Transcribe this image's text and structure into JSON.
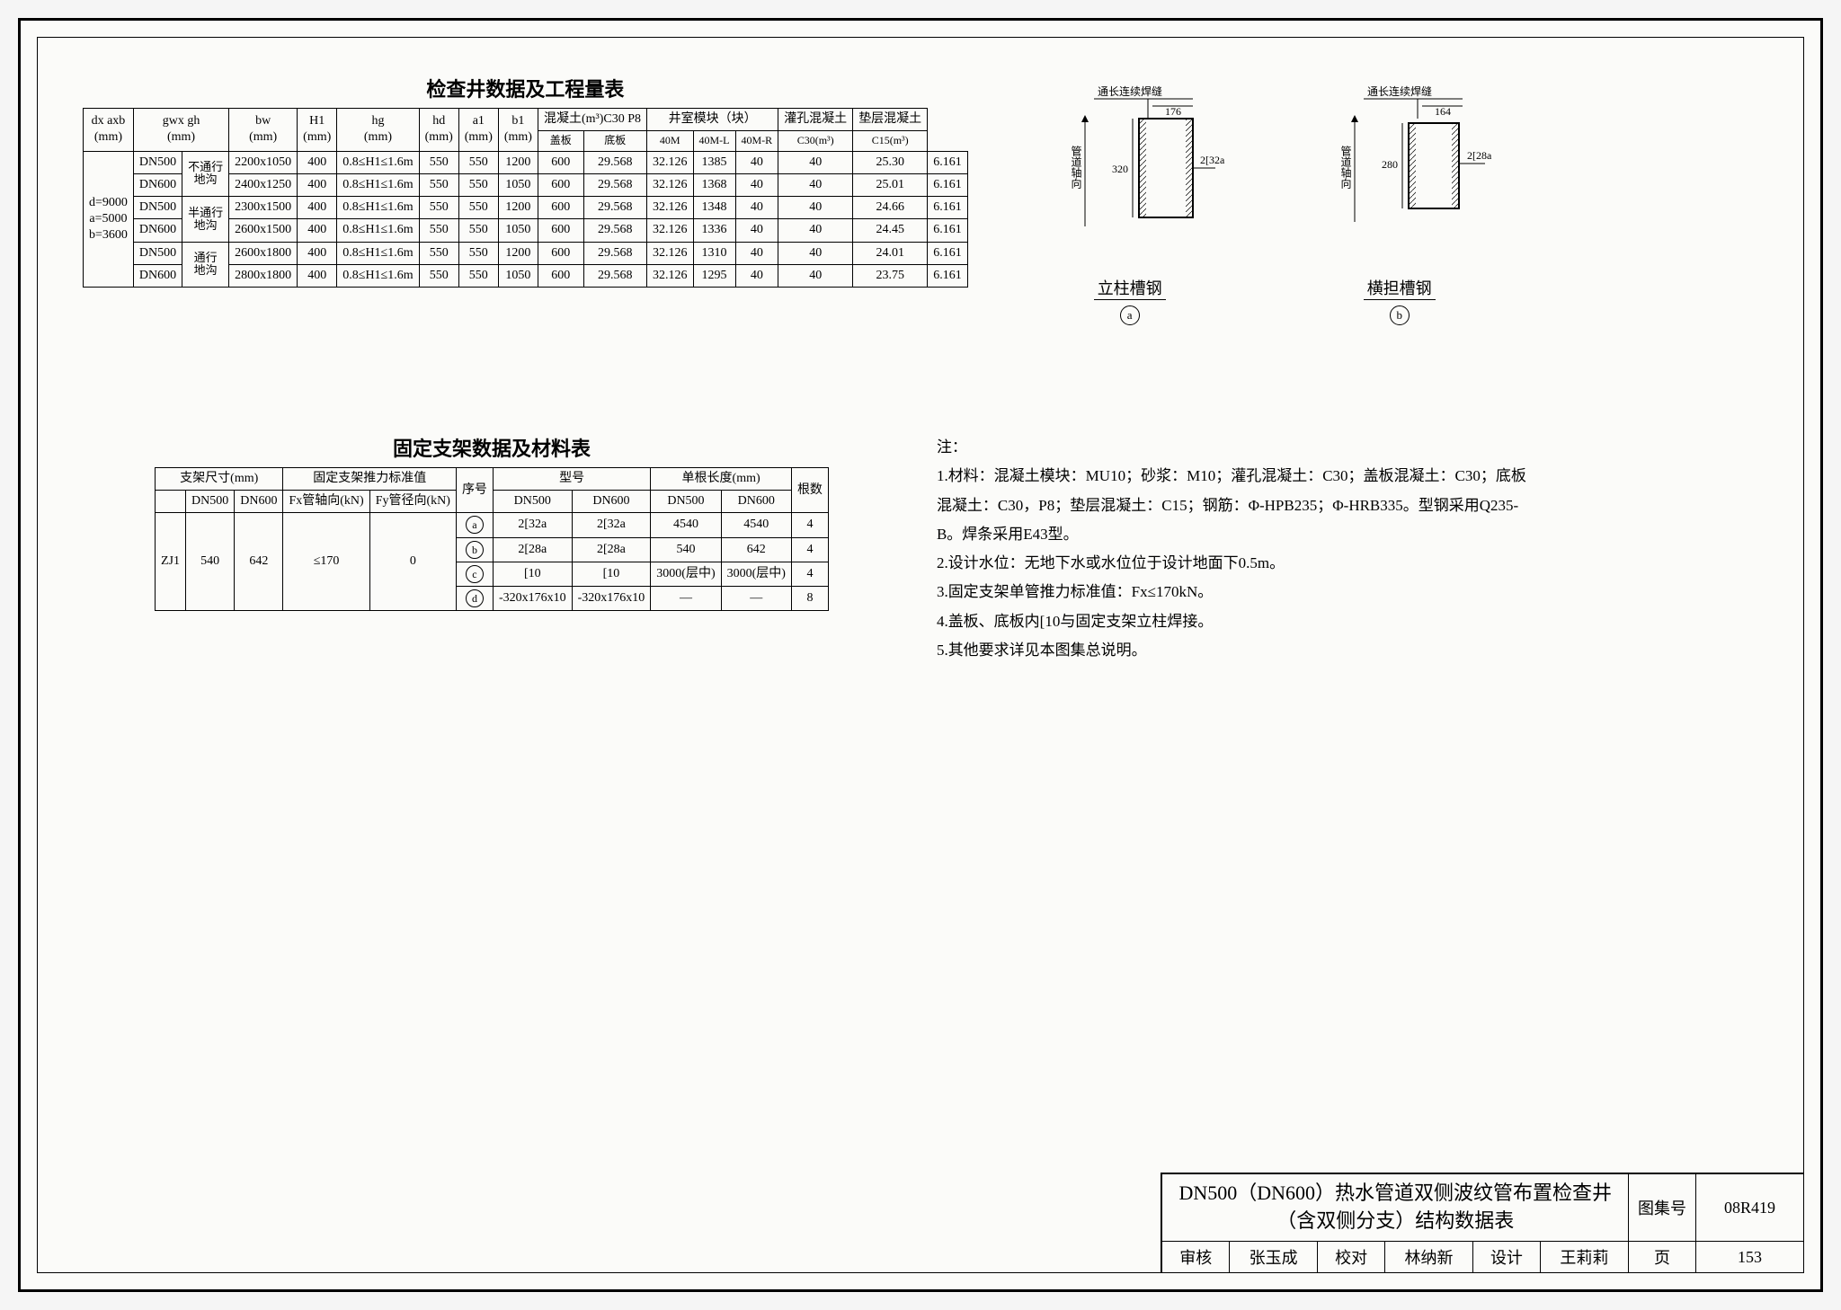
{
  "table1": {
    "title": "检查井数据及工程量表",
    "head_top": [
      "dx axb\n(mm)",
      "",
      "gwx gh\n(mm)",
      "bw\n(mm)",
      "H1\n(mm)",
      "hg\n(mm)",
      "hd\n(mm)",
      "a1\n(mm)",
      "b1\n(mm)",
      "混凝土(m³)C30 P8",
      "井室模块（块）",
      "灌孔混凝土",
      "垫层混凝土"
    ],
    "head_sub": [
      "盖板",
      "底板",
      "40M",
      "40M-L",
      "40M-R",
      "C30(m³)",
      "C15(m³)"
    ],
    "dxb": "d=9000\na=5000\nb=3600",
    "groups": [
      {
        "g": "不通行",
        "label": "地沟",
        "rows": [
          [
            "DN500",
            "2200x1050",
            "400",
            "0.8≤H1≤1.6m",
            "550",
            "550",
            "1200",
            "600",
            "29.568",
            "32.126",
            "1385",
            "40",
            "40",
            "25.30",
            "6.161"
          ],
          [
            "DN600",
            "2400x1250",
            "400",
            "0.8≤H1≤1.6m",
            "550",
            "550",
            "1050",
            "600",
            "29.568",
            "32.126",
            "1368",
            "40",
            "40",
            "25.01",
            "6.161"
          ]
        ]
      },
      {
        "g": "半通行",
        "label": "地沟",
        "rows": [
          [
            "DN500",
            "2300x1500",
            "400",
            "0.8≤H1≤1.6m",
            "550",
            "550",
            "1200",
            "600",
            "29.568",
            "32.126",
            "1348",
            "40",
            "40",
            "24.66",
            "6.161"
          ],
          [
            "DN600",
            "2600x1500",
            "400",
            "0.8≤H1≤1.6m",
            "550",
            "550",
            "1050",
            "600",
            "29.568",
            "32.126",
            "1336",
            "40",
            "40",
            "24.45",
            "6.161"
          ]
        ]
      },
      {
        "g": "通行",
        "label": "地沟",
        "rows": [
          [
            "DN500",
            "2600x1800",
            "400",
            "0.8≤H1≤1.6m",
            "550",
            "550",
            "1200",
            "600",
            "29.568",
            "32.126",
            "1310",
            "40",
            "40",
            "24.01",
            "6.161"
          ],
          [
            "DN600",
            "2800x1800",
            "400",
            "0.8≤H1≤1.6m",
            "550",
            "550",
            "1050",
            "600",
            "29.568",
            "32.126",
            "1295",
            "40",
            "40",
            "23.75",
            "6.161"
          ]
        ]
      }
    ]
  },
  "diagA": {
    "top": "通长连续焊缝",
    "w": "176",
    "h": "320",
    "side": "2[32a",
    "axis": "管道轴向",
    "caption": "立柱槽钢",
    "letter": "a"
  },
  "diagB": {
    "top": "通长连续焊缝",
    "w": "164",
    "h": "280",
    "side": "2[28a",
    "axis": "管道轴向",
    "caption": "横担槽钢",
    "letter": "b"
  },
  "table2": {
    "title": "固定支架数据及材料表",
    "head1": [
      "支架尺寸(mm)",
      "固定支架推力标准值",
      "序号",
      "型号",
      "单根长度(mm)",
      "根数"
    ],
    "head2": [
      "",
      "DN500",
      "DN600",
      "Fx管轴向(kN)",
      "Fy管径向(kN)",
      "",
      "DN500",
      "DN600",
      "DN500",
      "DN600",
      ""
    ],
    "body": [
      [
        "ZJ1",
        "540",
        "642",
        "≤170",
        "0",
        "a",
        "2[32a",
        "2[32a",
        "4540",
        "4540",
        "4"
      ],
      [
        "",
        "",
        "",
        "",
        "",
        "b",
        "2[28a",
        "2[28a",
        "540",
        "642",
        "4"
      ],
      [
        "",
        "",
        "",
        "",
        "",
        "c",
        "[10",
        "[10",
        "3000(层中)",
        "3000(层中)",
        "4"
      ],
      [
        "",
        "",
        "",
        "",
        "",
        "d",
        "-320x176x10",
        "-320x176x10",
        "—",
        "—",
        "8"
      ]
    ]
  },
  "notes": {
    "hdr": "注：",
    "items": [
      "1.材料：混凝土模块：MU10；砂浆：M10；灌孔混凝土：C30；盖板混凝土：C30；底板混凝土：C30，P8；垫层混凝土：C15；钢筋：Φ-HPB235；Φ-HRB335。型钢采用Q235-B。焊条采用E43型。",
      "2.设计水位：无地下水或水位位于设计地面下0.5m。",
      "3.固定支架单管推力标准值：Fx≤170kN。",
      "4.盖板、底板内[10与固定支架立柱焊接。",
      "5.其他要求详见本图集总说明。"
    ]
  },
  "titleblock": {
    "main": "DN500（DN600）热水管道双侧波纹管布置检查井\n（含双侧分支）结构数据表",
    "tuji_lbl": "图集号",
    "tuji": "08R419",
    "page_lbl": "页",
    "page": "153",
    "row": [
      {
        "l": "审核",
        "v": "张玉成"
      },
      {
        "l": "校对",
        "v": "林纳新"
      },
      {
        "l": "设计",
        "v": "王莉莉"
      }
    ]
  }
}
